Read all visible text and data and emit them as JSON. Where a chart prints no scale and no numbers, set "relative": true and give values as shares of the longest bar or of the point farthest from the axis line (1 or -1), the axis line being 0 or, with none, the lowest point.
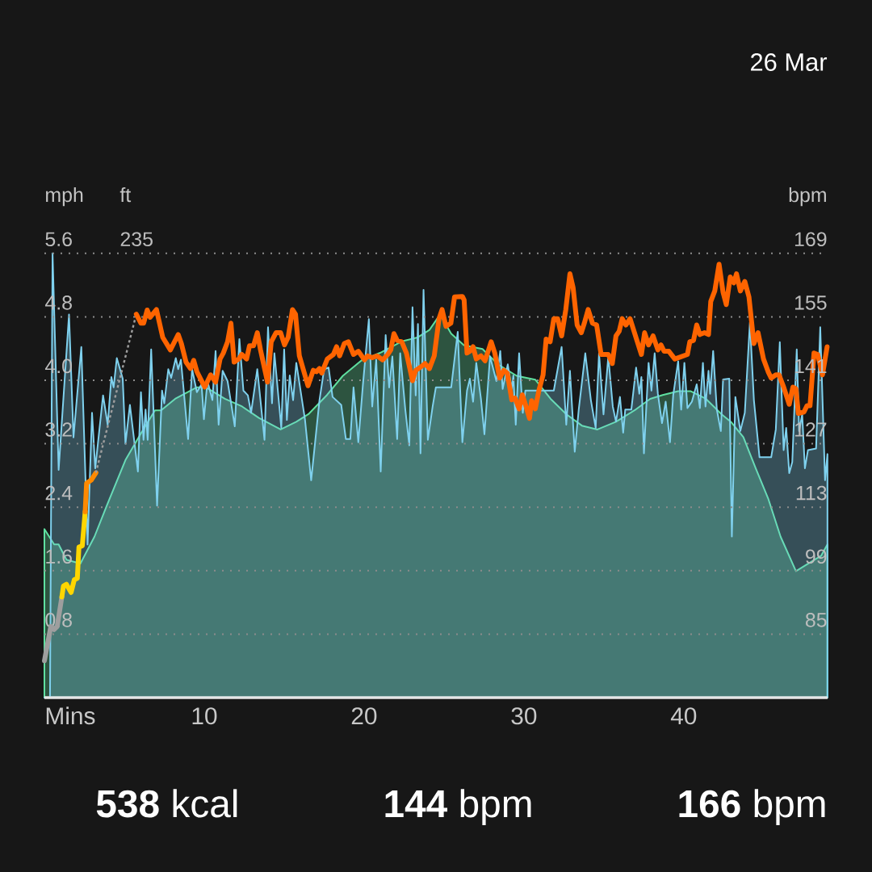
{
  "chart_data": [
    {
      "type": "area",
      "relative": true,
      "ylabel": "ft",
      "xlim": [
        0,
        49
      ],
      "annotations": [
        "235"
      ],
      "series": [
        {
          "color": "#5fe0a0",
          "x": [
            0,
            0.61,
            0.89,
            1.38,
            2.25,
            3.13,
            3.89,
            5.07,
            6.04,
            6.92,
            7.3,
            8.18,
            9.54,
            10.1,
            11.29,
            12.37,
            13.42,
            14.78,
            15.76,
            16.52,
            17.68,
            18.67,
            19.83,
            21.0,
            22.36,
            23.33,
            24.09,
            24.75,
            25.45,
            26.24,
            27.41,
            28.38,
            29.55,
            30.71,
            31.67,
            32.65,
            33.63,
            34.6,
            35.76,
            36.92,
            37.9,
            38.68,
            39.65,
            40.42,
            41.39,
            42.36,
            42.95,
            43.73,
            44.49,
            45.28,
            46.06,
            47.02,
            47.8,
            48.59,
            48.99
          ],
          "values": [
            0.44,
            0.4,
            0.4,
            0.36,
            0.35,
            0.42,
            0.5,
            0.62,
            0.69,
            0.75,
            0.75,
            0.78,
            0.81,
            0.81,
            0.78,
            0.76,
            0.73,
            0.7,
            0.72,
            0.74,
            0.79,
            0.84,
            0.88,
            0.9,
            0.93,
            0.94,
            0.96,
            1,
            0.95,
            0.92,
            0.91,
            0.87,
            0.84,
            0.83,
            0.78,
            0.74,
            0.71,
            0.7,
            0.72,
            0.75,
            0.78,
            0.79,
            0.8,
            0.8,
            0.78,
            0.74,
            0.72,
            0.68,
            0.6,
            0.52,
            0.42,
            0.33,
            0.35,
            0.37,
            0.4
          ]
        }
      ]
    },
    {
      "type": "area",
      "xlabel": "Mins",
      "ylabel": "mph",
      "y2label": "bpm",
      "xlim": [
        0,
        49
      ],
      "xticks": [
        10,
        20,
        30,
        40
      ],
      "ylim": [
        0,
        5.6
      ],
      "yticks": [
        0.8,
        1.6,
        2.4,
        3.2,
        {
          "value": 4,
          "label": "4.0"
        },
        4.8,
        5.6
      ],
      "y2lim": [
        71,
        169
      ],
      "y2ticks": [
        85,
        99,
        113,
        127,
        141,
        155,
        169
      ],
      "grid": "y",
      "annotations": [
        "26 Mar",
        "**538** kcal",
        "**144** bpm",
        "**166** bpm"
      ],
      "series": [
        {
          "color": "#7fd1ee",
          "x": [
            0,
            0.35,
            0.51,
            0.89,
            1.54,
            1.82,
            2.31,
            2.7,
            2.98,
            3.18,
            3.67,
            3.96,
            4.19,
            4.33,
            4.53,
            4.9,
            5.07,
            5.35,
            5.85,
            6.04,
            6.2,
            6.33,
            6.46,
            6.68,
            7.05,
            7.36,
            7.5,
            7.75,
            7.93,
            8.22,
            8.37,
            8.54,
            8.99,
            9.24,
            9.54,
            9.83,
            9.98,
            10.2,
            10.51,
            10.71,
            10.9,
            11.15,
            11.46,
            11.91,
            12.2,
            12.45,
            12.73,
            12.93,
            13.32,
            13.77,
            13.99,
            14.24,
            14.39,
            14.82,
            15.0,
            15.17,
            15.35,
            15.56,
            15.76,
            16.3,
            16.69,
            17.21,
            17.5,
            17.78,
            18.03,
            18.57,
            18.86,
            19.14,
            19.34,
            19.64,
            19.93,
            20.3,
            20.51,
            20.76,
            21.04,
            21.35,
            21.57,
            21.77,
            22.07,
            22.26,
            22.58,
            22.83,
            23.03,
            23.23,
            23.37,
            23.53,
            23.72,
            23.99,
            24.29,
            24.49,
            25.45,
            25.86,
            26.15,
            26.44,
            26.62,
            26.82,
            27.02,
            27.31,
            27.53,
            27.88,
            28.28,
            28.52,
            28.67,
            28.99,
            29.24,
            29.34,
            29.49,
            29.7,
            29.93,
            30.09,
            31.87,
            32.36,
            32.65,
            32.88,
            33.18,
            33.43,
            33.84,
            34.19,
            34.49,
            34.7,
            34.98,
            35.28,
            35.56,
            35.76,
            36.01,
            36.21,
            36.34,
            36.72,
            37.02,
            37.22,
            37.35,
            37.51,
            37.8,
            37.98,
            38.18,
            38.38,
            38.64,
            38.87,
            39.14,
            39.34,
            39.65,
            39.84,
            40.04,
            40.23,
            40.51,
            40.81,
            41.01,
            41.2,
            41.36,
            41.55,
            41.65,
            41.84,
            42.07,
            42.32,
            42.46,
            42.85,
            43.01,
            43.23,
            43.54,
            43.82,
            44.14,
            44.39,
            44.74,
            45.47,
            45.76,
            46.01,
            46.25,
            46.41,
            46.6,
            46.79,
            47.07,
            47.22,
            47.41,
            47.58,
            47.77,
            48.28,
            48.54,
            48.84,
            48.99
          ],
          "values": [
            0,
            0,
            5.6,
            2.87,
            4.83,
            3.28,
            4.42,
            1.93,
            3.59,
            2.89,
            3.81,
            3.44,
            4.04,
            3.91,
            4.28,
            4.02,
            3.2,
            3.69,
            2.85,
            3.85,
            3.25,
            3.63,
            3.25,
            4.39,
            2.42,
            3.87,
            3.71,
            4.14,
            4.03,
            4.28,
            4.14,
            4.26,
            3.26,
            4.14,
            3.85,
            3.95,
            3.51,
            3.99,
            3.75,
            4.37,
            3.44,
            4.12,
            3.99,
            3.42,
            4.52,
            3.87,
            3.81,
            3.59,
            4.14,
            3.25,
            4.67,
            3.71,
            4.34,
            3.4,
            4.39,
            3.5,
            4.06,
            3.75,
            4.22,
            3.51,
            2.74,
            3.75,
            4.14,
            4.16,
            3.79,
            3.69,
            3.26,
            3.26,
            3.91,
            3.22,
            3.95,
            4.77,
            3.67,
            4.26,
            2.85,
            4.57,
            3.91,
            4.3,
            3.26,
            4.34,
            3.63,
            3.18,
            4.92,
            3.81,
            4.71,
            3.08,
            5.14,
            3.25,
            3.67,
            3.91,
            3.91,
            4.61,
            3.22,
            3.87,
            4.02,
            3.73,
            4.22,
            3.77,
            3.32,
            4.3,
            3.99,
            4.37,
            3.89,
            4.2,
            3.89,
            4.06,
            3.44,
            4.34,
            3.59,
            3.87,
            3.87,
            4.42,
            3.44,
            4.12,
            3.1,
            3.63,
            4.34,
            3.75,
            3.4,
            4.34,
            3.57,
            4.3,
            3.67,
            3.48,
            3.79,
            3.34,
            3.63,
            3.63,
            4.16,
            3.83,
            4.04,
            3.08,
            4.22,
            3.87,
            4.34,
            3.83,
            3.46,
            3.73,
            3.22,
            3.81,
            4.24,
            3.63,
            4.22,
            3.65,
            3.73,
            3.95,
            3.65,
            4.22,
            3.67,
            4.12,
            3.83,
            4.37,
            3.63,
            3.36,
            4.01,
            4.02,
            2.03,
            3.79,
            3.36,
            3.59,
            4.73,
            3.75,
            3.03,
            3.03,
            3.38,
            4.48,
            3.12,
            3.4,
            2.83,
            2.97,
            4.39,
            3.36,
            3.57,
            2.89,
            3.12,
            3.14,
            4.67,
            2.74,
            3.07
          ]
        },
        {
          "type": "line",
          "axis": "y2",
          "color": "#9e9e9e",
          "x": [
            0,
            0.4,
            0.61,
            0.8,
            1.09
          ],
          "values": [
            79.1,
            86.7,
            86.0,
            86.7,
            93.2
          ]
        },
        {
          "type": "line",
          "axis": "y2",
          "color": "#ffd600",
          "x": [
            1.09,
            1.19,
            1.38,
            1.67,
            1.87,
            2.06,
            2.16,
            2.37,
            2.55
          ],
          "values": [
            93.2,
            95.6,
            96.0,
            94.2,
            97.0,
            97.3,
            104.2,
            104.5,
            112.0
          ]
        },
        {
          "type": "line",
          "axis": "y2",
          "color": "#ff8a00",
          "x": [
            2.55,
            2.64,
            2.93,
            3.22
          ],
          "values": [
            112.0,
            118.3,
            119.0,
            120.6
          ]
        },
        {
          "type": "line",
          "axis": "y2",
          "color": "#9e9e9e",
          "line_style": "dotted",
          "x": [
            3.22,
            5.75
          ],
          "values": [
            120.6,
            155.6
          ]
        },
        {
          "type": "line",
          "axis": "y2",
          "color": "#ff6400",
          "x": [
            5.75,
            6.04,
            6.21,
            6.43,
            6.62,
            7.01,
            7.4,
            7.88,
            8.37,
            8.57,
            8.86,
            9.14,
            9.34,
            9.54,
            10.03,
            10.4,
            10.71,
            10.99,
            11.19,
            11.46,
            11.67,
            11.87,
            12.16,
            12.35,
            12.65,
            12.83,
            13.08,
            13.32,
            13.52,
            13.96,
            14.19,
            14.49,
            14.78,
            15.02,
            15.25,
            15.52,
            15.71,
            15.95,
            16.49,
            16.82,
            17.02,
            17.21,
            17.35,
            17.7,
            18.08,
            18.28,
            18.47,
            18.76,
            19.02,
            19.34,
            19.64,
            20.03,
            20.22,
            20.51,
            20.81,
            21.16,
            21.48,
            21.67,
            21.87,
            22.07,
            22.36,
            22.65,
            23.03,
            23.23,
            23.53,
            23.81,
            24.09,
            24.39,
            24.69,
            24.88,
            25.12,
            25.43,
            25.66,
            26.15,
            26.26,
            26.44,
            26.62,
            26.82,
            27.02,
            27.31,
            27.57,
            27.95,
            28.18,
            28.48,
            28.74,
            28.96,
            29.24,
            29.44,
            29.7,
            29.9,
            30.09,
            30.35,
            30.48,
            30.71,
            30.94,
            31.2,
            31.39,
            31.64,
            31.87,
            32.11,
            32.36,
            32.62,
            32.88,
            33.08,
            33.33,
            33.59,
            33.78,
            34.02,
            34.29,
            34.55,
            34.83,
            35.28,
            35.53,
            35.76,
            35.96,
            36.15,
            36.38,
            36.64,
            37.07,
            37.35,
            37.55,
            37.8,
            38.08,
            38.38,
            38.58,
            38.77,
            39.07,
            39.44,
            40.23,
            40.38,
            40.61,
            40.81,
            41.01,
            41.3,
            41.55,
            41.69,
            41.94,
            42.21,
            42.46,
            42.66,
            42.91,
            43.13,
            43.3,
            43.54,
            43.82,
            44.08,
            44.39,
            44.65,
            44.99,
            45.28,
            45.47,
            45.76,
            45.96,
            46.25,
            46.6,
            46.83,
            47.02,
            47.17,
            47.52,
            47.71,
            47.9,
            48.15,
            48.38,
            48.68,
            48.97
          ],
          "values": [
            155.6,
            153.6,
            153.6,
            156.5,
            154.9,
            156.6,
            150.5,
            147.7,
            151.1,
            149.1,
            145.0,
            143.6,
            145.4,
            142.9,
            139.5,
            142.2,
            140.6,
            145.7,
            147.0,
            149.5,
            153.6,
            145.0,
            145.7,
            146.7,
            145.7,
            148.6,
            148.6,
            151.5,
            147.7,
            140.6,
            149.5,
            151.5,
            151.5,
            148.8,
            150.5,
            156.6,
            155.6,
            146.4,
            139.8,
            143.2,
            142.9,
            143.6,
            142.6,
            145.7,
            146.7,
            148.4,
            146.4,
            149.1,
            149.5,
            146.7,
            147.4,
            145.5,
            146.4,
            146.0,
            146.4,
            145.5,
            146.7,
            147.7,
            151.3,
            149.8,
            149.5,
            147.0,
            140.9,
            143.2,
            143.9,
            144.7,
            143.6,
            146.4,
            154.6,
            156.6,
            152.9,
            153.6,
            159.4,
            159.5,
            158.7,
            147.0,
            147.4,
            148.4,
            145.7,
            146.4,
            145.3,
            149.5,
            147.0,
            141.5,
            143.2,
            142.6,
            136.7,
            137.1,
            134.7,
            137.8,
            135.7,
            132.6,
            136.5,
            134.7,
            138.8,
            142.2,
            150.1,
            149.5,
            154.6,
            154.6,
            150.8,
            156.6,
            164.5,
            161.4,
            153.2,
            151.5,
            153.6,
            156.6,
            153.6,
            153.2,
            146.7,
            146.7,
            144.7,
            150.8,
            151.8,
            154.6,
            153.2,
            154.6,
            149.8,
            146.7,
            151.5,
            148.8,
            150.8,
            147.7,
            148.8,
            147.4,
            147.4,
            145.7,
            146.7,
            149.5,
            149.8,
            153.2,
            151.1,
            151.5,
            151.1,
            158.4,
            160.7,
            166.6,
            160.4,
            157.7,
            163.8,
            162.5,
            164.5,
            160.7,
            162.8,
            159.4,
            149.1,
            151.5,
            145.7,
            142.9,
            141.5,
            142.2,
            142.2,
            139.5,
            135.7,
            139.5,
            139.1,
            133.7,
            134.0,
            135.4,
            135.4,
            147.0,
            146.7,
            142.2,
            148.4
          ]
        }
      ]
    }
  ]
}
